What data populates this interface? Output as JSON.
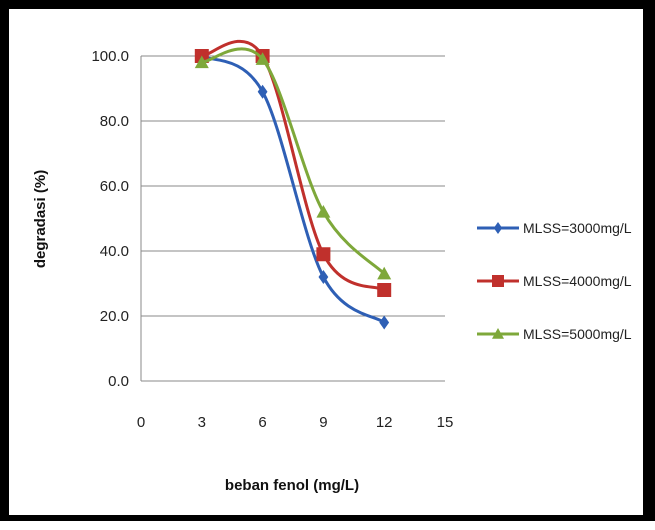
{
  "chart_data": {
    "type": "line",
    "title": "",
    "xlabel": "beban fenol (mg/L)",
    "ylabel": "degradasi (%)",
    "xlim": [
      0,
      15
    ],
    "ylim": [
      0,
      100
    ],
    "xticks": [
      "0",
      "3",
      "6",
      "9",
      "12",
      "15"
    ],
    "yticks": [
      "0.0",
      "20.0",
      "40.0",
      "60.0",
      "80.0",
      "100.0"
    ],
    "grid": true,
    "legend_position": "right",
    "x": [
      3,
      6,
      9,
      12
    ],
    "series": [
      {
        "name": "MLSS=3000mg/L",
        "values": [
          100,
          89,
          32,
          18
        ],
        "color": "#2e5fb5",
        "marker": "diamond"
      },
      {
        "name": "MLSS=4000mg/L",
        "values": [
          100,
          100,
          39,
          28
        ],
        "color": "#c0302c",
        "marker": "square"
      },
      {
        "name": "MLSS=5000mg/L",
        "values": [
          98,
          99,
          52,
          33
        ],
        "color": "#7ea83a",
        "marker": "triangle"
      }
    ]
  }
}
